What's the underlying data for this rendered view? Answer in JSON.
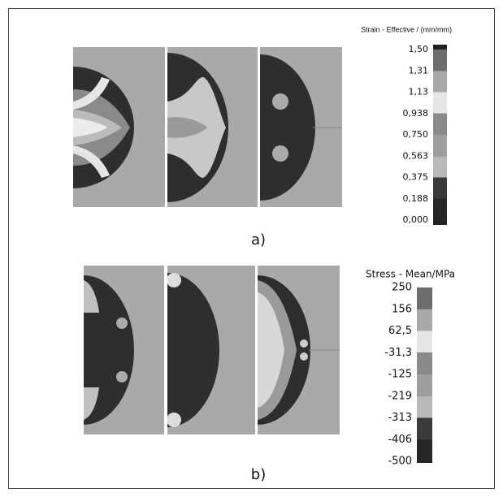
{
  "figure_a": {
    "legend_title": "Strain - Effective / (mm/mm)",
    "legend_labels": [
      "1,50",
      "1,31",
      "1,13",
      "0,938",
      "0,750",
      "0,563",
      "0,375",
      "0,188",
      "0,000"
    ],
    "caption": "a)"
  },
  "figure_b": {
    "legend_title": "Stress - Mean/MPa",
    "legend_labels": [
      "250",
      "156",
      "62,5",
      "-31,3",
      "-125",
      "-219",
      "-313",
      "-406",
      "-500"
    ],
    "caption": "b)"
  }
}
